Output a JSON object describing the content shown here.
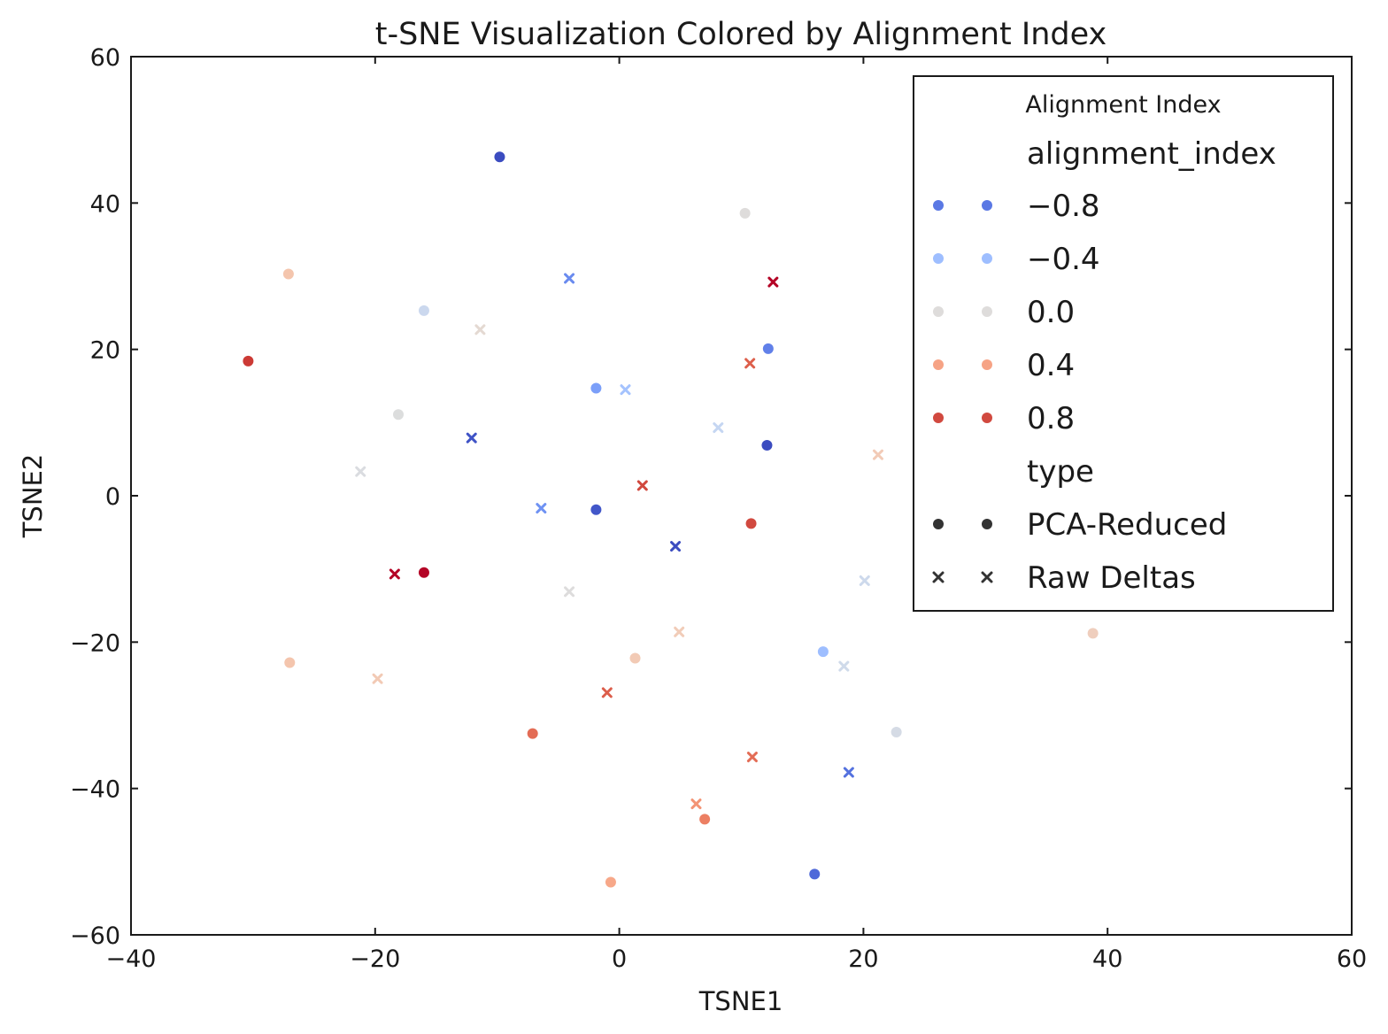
{
  "chart_data": {
    "type": "scatter",
    "title": "t-SNE Visualization Colored by Alignment Index",
    "xlabel": "TSNE1",
    "ylabel": "TSNE2",
    "xlim": [
      -40,
      60
    ],
    "ylim": [
      -60,
      60
    ],
    "x_ticks": [
      -40,
      -20,
      0,
      20,
      40,
      60
    ],
    "y_ticks": [
      -60,
      -40,
      -20,
      0,
      20,
      40,
      60
    ],
    "x_tick_labels": [
      "−40",
      "−20",
      "0",
      "20",
      "40",
      "60"
    ],
    "y_tick_labels": [
      "−60",
      "−40",
      "−20",
      "0",
      "20",
      "40",
      "60"
    ],
    "grid": false,
    "colormap": "coolwarm",
    "legend": {
      "placement": "top-right",
      "title": "Alignment Index",
      "hue_heading": "alignment_index",
      "hue_entries": [
        {
          "label": "−0.8",
          "color": "#5a78e4"
        },
        {
          "label": "−0.4",
          "color": "#9ebeff"
        },
        {
          "label": "0.0",
          "color": "#dedcdb"
        },
        {
          "label": "0.4",
          "color": "#f6a385"
        },
        {
          "label": "0.8",
          "color": "#d1493f"
        }
      ],
      "style_heading": "type",
      "style_entries": [
        {
          "label": "PCA-Reduced",
          "marker": "circle",
          "color": "#333333"
        },
        {
          "label": "Raw Deltas",
          "marker": "x",
          "color": "#333333"
        }
      ]
    },
    "series": [
      {
        "marker": "circle",
        "points": [
          {
            "x": -9.8,
            "y": 46.3,
            "color": "#3b4cc0"
          },
          {
            "x": 10.3,
            "y": 38.6,
            "color": "#dedcdb"
          },
          {
            "x": -27.1,
            "y": 30.3,
            "color": "#f4c5ad"
          },
          {
            "x": -16.0,
            "y": 25.3,
            "color": "#cbd8ee"
          },
          {
            "x": -30.4,
            "y": 18.4,
            "color": "#cc3a35"
          },
          {
            "x": 12.2,
            "y": 20.1,
            "color": "#6180e9"
          },
          {
            "x": -1.9,
            "y": 14.7,
            "color": "#7b9ff9"
          },
          {
            "x": -18.1,
            "y": 11.1,
            "color": "#dcdddd"
          },
          {
            "x": 12.1,
            "y": 6.9,
            "color": "#3b4cc0"
          },
          {
            "x": -1.9,
            "y": -1.9,
            "color": "#4257c9"
          },
          {
            "x": 10.8,
            "y": -3.8,
            "color": "#d1493f"
          },
          {
            "x": -16.0,
            "y": -10.5,
            "color": "#b40426"
          },
          {
            "x": 38.8,
            "y": -18.8,
            "color": "#efcebd"
          },
          {
            "x": 16.7,
            "y": -21.3,
            "color": "#9ebeff"
          },
          {
            "x": -27.0,
            "y": -22.8,
            "color": "#f4c5ad"
          },
          {
            "x": 1.3,
            "y": -22.2,
            "color": "#f2cab5"
          },
          {
            "x": 22.7,
            "y": -32.3,
            "color": "#d5dbe5"
          },
          {
            "x": -7.1,
            "y": -32.5,
            "color": "#e36c55"
          },
          {
            "x": 7.0,
            "y": -44.2,
            "color": "#ec7f63"
          },
          {
            "x": 16.0,
            "y": -51.7,
            "color": "#4f69d9"
          },
          {
            "x": -0.7,
            "y": -52.8,
            "color": "#f7a889"
          }
        ]
      },
      {
        "marker": "x",
        "points": [
          {
            "x": -4.1,
            "y": 29.7,
            "color": "#6a8bef"
          },
          {
            "x": 12.6,
            "y": 29.2,
            "color": "#b40426"
          },
          {
            "x": -11.4,
            "y": 22.7,
            "color": "#e4d9d2"
          },
          {
            "x": 10.7,
            "y": 18.1,
            "color": "#dd5f4b"
          },
          {
            "x": 0.5,
            "y": 14.5,
            "color": "#a5c3fe"
          },
          {
            "x": 8.1,
            "y": 9.3,
            "color": "#c5d6f2"
          },
          {
            "x": -12.1,
            "y": 7.9,
            "color": "#3f53c6"
          },
          {
            "x": 21.2,
            "y": 5.6,
            "color": "#f2cbb7"
          },
          {
            "x": -21.2,
            "y": 3.3,
            "color": "#dadce0"
          },
          {
            "x": 1.9,
            "y": 1.4,
            "color": "#d1493f"
          },
          {
            "x": -6.4,
            "y": -1.7,
            "color": "#6f92f3"
          },
          {
            "x": 4.6,
            "y": -6.9,
            "color": "#3b4cc0"
          },
          {
            "x": -18.4,
            "y": -10.7,
            "color": "#b40426"
          },
          {
            "x": 20.1,
            "y": -11.6,
            "color": "#cdd9ec"
          },
          {
            "x": -4.1,
            "y": -13.1,
            "color": "#dddcdc"
          },
          {
            "x": 4.9,
            "y": -18.6,
            "color": "#f1ccb8"
          },
          {
            "x": 18.4,
            "y": -23.3,
            "color": "#cfdaea"
          },
          {
            "x": -19.8,
            "y": -25.0,
            "color": "#f2cab5"
          },
          {
            "x": -1.0,
            "y": -26.9,
            "color": "#dc5d4a"
          },
          {
            "x": 10.9,
            "y": -35.7,
            "color": "#e36c55"
          },
          {
            "x": 18.8,
            "y": -37.8,
            "color": "#5572df"
          },
          {
            "x": 6.3,
            "y": -42.1,
            "color": "#f39475"
          }
        ]
      }
    ]
  }
}
